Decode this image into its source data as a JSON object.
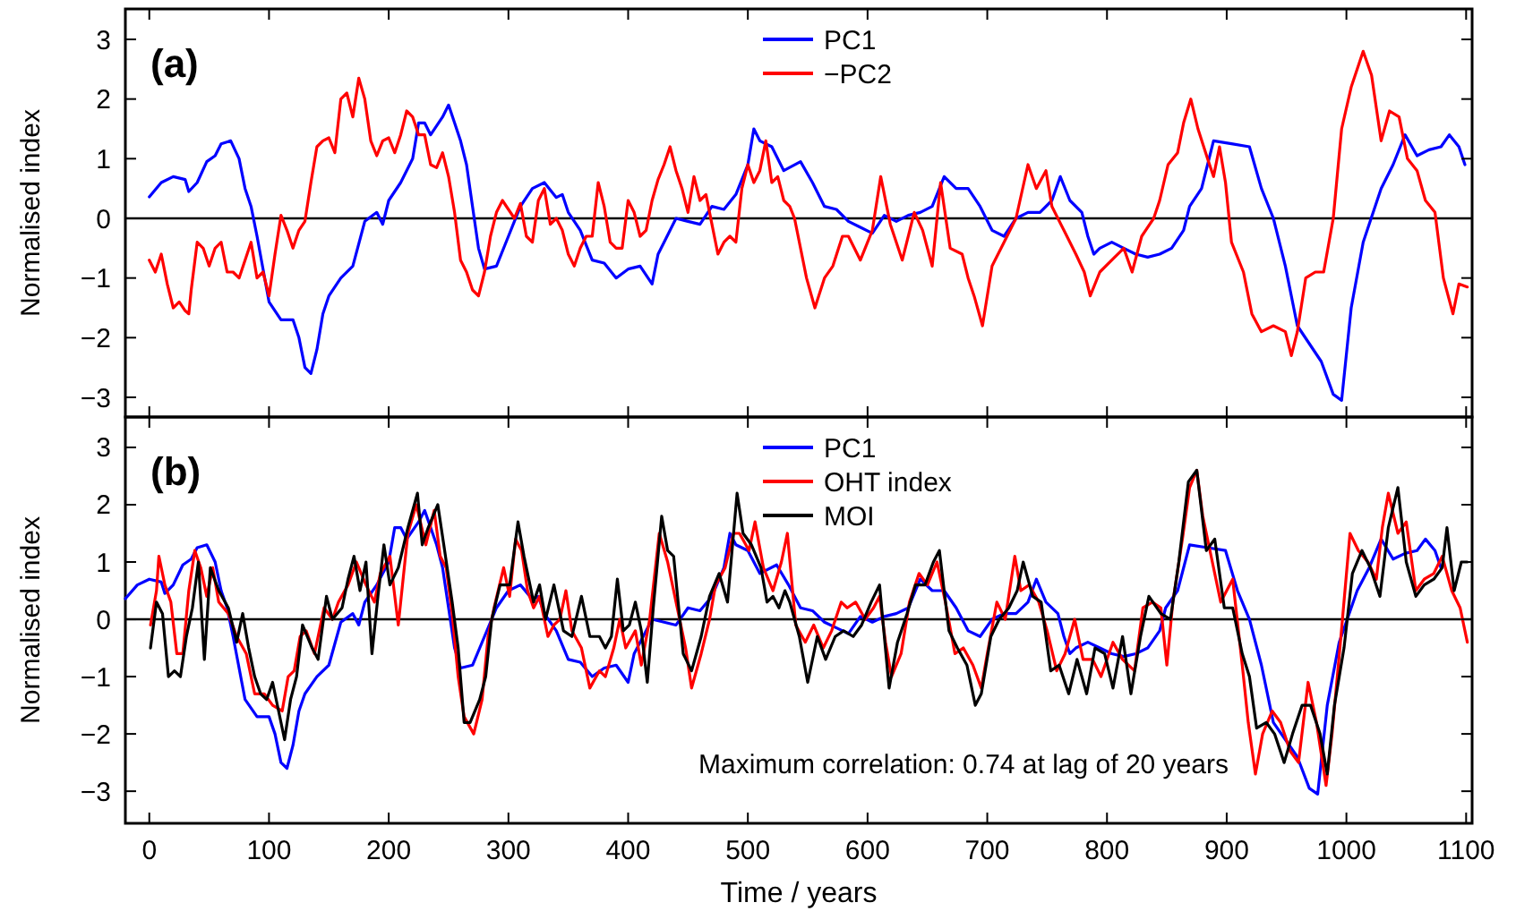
{
  "chart_data": [
    {
      "type": "line",
      "title": "(a)",
      "ylabel": "Normalised index",
      "xlim": [
        -20,
        1105
      ],
      "xticks": [
        0,
        100,
        200,
        300,
        400,
        500,
        600,
        700,
        800,
        900,
        1000,
        1100
      ],
      "ylim": [
        -3.33,
        3.51
      ],
      "yticks": [
        -3,
        -2,
        -1,
        0,
        1,
        2,
        3
      ],
      "tick_labels": "y",
      "legend": "top",
      "ref_lines": [
        {
          "axis": "y",
          "value": 0,
          "color": "#000000"
        }
      ],
      "series": [
        {
          "name": "PC1",
          "color": "#0000ff",
          "x": [
            0,
            10,
            20,
            30,
            33,
            40,
            48,
            55,
            60,
            68,
            75,
            80,
            85,
            90,
            100,
            110,
            120,
            125,
            130,
            135,
            140,
            145,
            150,
            160,
            170,
            180,
            190,
            195,
            200,
            210,
            220,
            225,
            230,
            235,
            245,
            250,
            255,
            260,
            265,
            270,
            275,
            280,
            290,
            300,
            310,
            320,
            330,
            340,
            345,
            350,
            360,
            370,
            380,
            390,
            400,
            410,
            420,
            425,
            430,
            440,
            450,
            460,
            470,
            480,
            490,
            500,
            505,
            510,
            520,
            530,
            544,
            554,
            564,
            574,
            584,
            594,
            604,
            614,
            624,
            634,
            644,
            654,
            664,
            674,
            684,
            694,
            704,
            714,
            724,
            734,
            744,
            754,
            761,
            769,
            779,
            784,
            789,
            794,
            804,
            814,
            824,
            834,
            844,
            854,
            864,
            869,
            879,
            889,
            904,
            919,
            929,
            939,
            949,
            959,
            969,
            979,
            989,
            996,
            1004,
            1014,
            1029,
            1039,
            1049,
            1059,
            1069,
            1079,
            1086,
            1094,
            1099
          ],
          "values": [
            0.36,
            0.6,
            0.7,
            0.65,
            0.45,
            0.6,
            0.95,
            1.05,
            1.25,
            1.3,
            1.0,
            0.5,
            0.2,
            -0.3,
            -1.4,
            -1.7,
            -1.7,
            -2.0,
            -2.5,
            -2.6,
            -2.2,
            -1.6,
            -1.3,
            -1.0,
            -0.8,
            -0.05,
            0.1,
            -0.1,
            0.3,
            0.6,
            1.0,
            1.6,
            1.6,
            1.4,
            1.7,
            1.9,
            1.6,
            1.3,
            0.9,
            0.2,
            -0.5,
            -0.85,
            -0.8,
            -0.3,
            0.2,
            0.5,
            0.6,
            0.35,
            0.4,
            0.1,
            -0.2,
            -0.7,
            -0.75,
            -1.0,
            -0.85,
            -0.8,
            -1.1,
            -0.6,
            -0.4,
            0,
            -0.05,
            -0.1,
            0.2,
            0.15,
            0.4,
            0.9,
            1.5,
            1.3,
            1.2,
            0.8,
            0.95,
            0.6,
            0.2,
            0.15,
            -0.05,
            -0.15,
            -0.25,
            0.05,
            -0.05,
            0.05,
            0.1,
            0.2,
            0.7,
            0.5,
            0.5,
            0.2,
            -0.2,
            -0.3,
            0,
            0.1,
            0.1,
            0.3,
            0.7,
            0.3,
            0.1,
            -0.3,
            -0.6,
            -0.5,
            -0.4,
            -0.5,
            -0.6,
            -0.65,
            -0.6,
            -0.5,
            -0.2,
            0.2,
            0.5,
            1.3,
            1.25,
            1.2,
            0.5,
            0,
            -0.8,
            -1.8,
            -2.1,
            -2.4,
            -2.95,
            -3.05,
            -1.5,
            -0.4,
            0.5,
            0.9,
            1.4,
            1.05,
            1.15,
            1.2,
            1.4,
            1.2,
            0.9
          ]
        },
        {
          "name": "−PC2",
          "color": "#ff0000",
          "x": [
            0,
            5,
            10,
            15,
            20,
            25,
            30,
            33,
            35,
            40,
            45,
            50,
            55,
            60,
            65,
            70,
            75,
            80,
            85,
            90,
            95,
            100,
            105,
            110,
            115,
            120,
            125,
            130,
            135,
            140,
            145,
            150,
            155,
            160,
            165,
            170,
            175,
            180,
            185,
            190,
            195,
            200,
            205,
            210,
            215,
            220,
            225,
            230,
            235,
            240,
            245,
            250,
            255,
            260,
            265,
            270,
            275,
            280,
            285,
            290,
            295,
            300,
            305,
            310,
            315,
            320,
            325,
            330,
            335,
            340,
            345,
            350,
            355,
            360,
            365,
            370,
            375,
            380,
            385,
            390,
            395,
            400,
            405,
            410,
            415,
            420,
            425,
            430,
            435,
            440,
            445,
            450,
            455,
            460,
            465,
            470,
            475,
            480,
            485,
            490,
            495,
            500,
            505,
            510,
            515,
            520,
            525,
            530,
            535,
            539,
            549,
            556,
            564,
            571,
            579,
            584,
            594,
            604,
            611,
            619,
            629,
            639,
            646,
            654,
            661,
            669,
            679,
            684,
            689,
            696,
            704,
            714,
            724,
            734,
            741,
            749,
            754,
            764,
            774,
            781,
            786,
            794,
            804,
            814,
            821,
            829,
            839,
            844,
            851,
            859,
            864,
            870,
            876,
            884,
            889,
            894,
            899,
            904,
            914,
            921,
            929,
            939,
            949,
            954,
            959,
            966,
            974,
            981,
            989,
            996,
            1004,
            1014,
            1021,
            1029,
            1036,
            1044,
            1051,
            1059,
            1066,
            1074,
            1081,
            1089,
            1094,
            1101
          ],
          "values": [
            -0.7,
            -0.9,
            -0.6,
            -1.1,
            -1.5,
            -1.4,
            -1.55,
            -1.6,
            -1.2,
            -0.4,
            -0.5,
            -0.8,
            -0.5,
            -0.4,
            -0.9,
            -0.9,
            -1.0,
            -0.7,
            -0.4,
            -1.0,
            -0.9,
            -1.3,
            -0.6,
            0.05,
            -0.2,
            -0.5,
            -0.2,
            -0.05,
            0.6,
            1.2,
            1.3,
            1.35,
            1.1,
            2.0,
            2.1,
            1.7,
            2.35,
            2.0,
            1.3,
            1.05,
            1.3,
            1.35,
            1.1,
            1.4,
            1.8,
            1.7,
            1.4,
            1.4,
            0.9,
            0.85,
            1.1,
            0.7,
            0.1,
            -0.7,
            -0.9,
            -1.2,
            -1.3,
            -0.9,
            -0.3,
            0.1,
            0.3,
            0.15,
            0,
            0.25,
            -0.3,
            -0.4,
            0.3,
            0.5,
            -0.1,
            0,
            -0.2,
            -0.6,
            -0.8,
            -0.5,
            -0.3,
            -0.3,
            0.6,
            0.2,
            -0.4,
            -0.5,
            -0.5,
            0.3,
            0.1,
            -0.3,
            -0.2,
            0.3,
            0.65,
            0.9,
            1.2,
            0.8,
            0.5,
            0.1,
            0.7,
            0.3,
            0.4,
            -0.1,
            -0.6,
            -0.4,
            -0.3,
            -0.4,
            0.5,
            0.9,
            0.6,
            0.8,
            1.3,
            0.6,
            0.7,
            0.3,
            0.2,
            0,
            -1.0,
            -1.5,
            -1.0,
            -0.8,
            -0.3,
            -0.3,
            -0.7,
            -0.2,
            0.7,
            -0.1,
            -0.7,
            0.1,
            -0.2,
            -0.8,
            0.6,
            -0.5,
            -0.6,
            -1.0,
            -1.3,
            -1.8,
            -0.8,
            -0.4,
            0,
            0.9,
            0.5,
            0.8,
            0.2,
            -0.2,
            -0.6,
            -0.9,
            -1.3,
            -0.9,
            -0.7,
            -0.5,
            -0.9,
            -0.3,
            0,
            0.3,
            0.9,
            1.1,
            1.6,
            2.0,
            1.5,
            1.0,
            0.7,
            1.2,
            0.6,
            -0.4,
            -0.9,
            -1.6,
            -1.9,
            -1.8,
            -1.9,
            -2.3,
            -1.9,
            -1.0,
            -0.9,
            -0.9,
            0,
            1.5,
            2.2,
            2.8,
            2.4,
            1.3,
            1.8,
            1.7,
            1.0,
            0.8,
            0.3,
            0.1,
            -1.0,
            -1.6,
            -1.1,
            -1.15
          ]
        }
      ]
    },
    {
      "type": "line",
      "title": "(b)",
      "xlabel": "Time  / years",
      "ylabel": "Normalised index",
      "xlim": [
        -20,
        1105
      ],
      "xticks": [
        0,
        100,
        200,
        300,
        400,
        500,
        600,
        700,
        800,
        900,
        1000,
        1100
      ],
      "ylim": [
        -3.56,
        3.53
      ],
      "yticks": [
        -3,
        -2,
        -1,
        0,
        1,
        2,
        3
      ],
      "legend": "top",
      "ref_lines": [
        {
          "axis": "y",
          "value": 0,
          "color": "#000000"
        }
      ],
      "annotations": [
        "Maximum correlation: 0.74 at lag of 20 years"
      ],
      "series": [
        {
          "name": "PC1",
          "color": "#0000ff",
          "x": [
            -20,
            -10,
            0,
            10,
            13,
            20,
            28,
            35,
            40,
            48,
            55,
            60,
            65,
            70,
            80,
            90,
            100,
            105,
            110,
            115,
            120,
            125,
            130,
            140,
            150,
            160,
            170,
            175,
            180,
            190,
            200,
            205,
            210,
            215,
            225,
            230,
            235,
            240,
            245,
            250,
            255,
            260,
            270,
            280,
            290,
            300,
            310,
            320,
            325,
            330,
            340,
            350,
            360,
            370,
            380,
            390,
            400,
            405,
            410,
            420,
            430,
            440,
            450,
            460,
            470,
            480,
            485,
            490,
            500,
            510,
            524,
            534,
            544,
            554,
            564,
            574,
            584,
            594,
            604,
            614,
            624,
            634,
            644,
            654,
            664,
            674,
            684,
            694,
            704,
            714,
            724,
            734,
            741,
            749,
            759,
            764,
            769,
            774,
            784,
            794,
            804,
            814,
            824,
            834,
            844,
            849,
            859,
            869,
            884,
            899,
            909,
            919,
            929,
            939,
            949,
            959,
            969,
            976,
            984,
            994,
            1009,
            1019,
            1029,
            1039,
            1049,
            1059,
            1066,
            1074,
            1079
          ],
          "values": [
            0.36,
            0.6,
            0.7,
            0.65,
            0.45,
            0.6,
            0.95,
            1.05,
            1.25,
            1.3,
            1.0,
            0.5,
            0.2,
            -0.3,
            -1.4,
            -1.7,
            -1.7,
            -2.0,
            -2.5,
            -2.6,
            -2.2,
            -1.6,
            -1.3,
            -1.0,
            -0.8,
            -0.05,
            0.1,
            -0.1,
            0.3,
            0.6,
            1.0,
            1.6,
            1.6,
            1.4,
            1.7,
            1.9,
            1.6,
            1.3,
            0.9,
            0.2,
            -0.5,
            -0.85,
            -0.8,
            -0.3,
            0.2,
            0.5,
            0.6,
            0.35,
            0.4,
            0.1,
            -0.2,
            -0.7,
            -0.75,
            -1.0,
            -0.85,
            -0.8,
            -1.1,
            -0.6,
            -0.4,
            0,
            -0.05,
            -0.1,
            0.2,
            0.15,
            0.4,
            0.9,
            1.5,
            1.3,
            1.2,
            0.8,
            0.95,
            0.6,
            0.2,
            0.15,
            -0.05,
            -0.15,
            -0.25,
            0.05,
            -0.05,
            0.05,
            0.1,
            0.2,
            0.7,
            0.5,
            0.5,
            0.2,
            -0.2,
            -0.3,
            0,
            0.1,
            0.1,
            0.3,
            0.7,
            0.3,
            0.1,
            -0.3,
            -0.6,
            -0.5,
            -0.4,
            -0.5,
            -0.6,
            -0.65,
            -0.6,
            -0.5,
            -0.2,
            0.2,
            0.5,
            1.3,
            1.25,
            1.2,
            0.5,
            0,
            -0.8,
            -1.8,
            -2.1,
            -2.4,
            -2.95,
            -3.05,
            -1.5,
            -0.4,
            0.5,
            0.9,
            1.4,
            1.05,
            1.15,
            1.2,
            1.4,
            1.2,
            0.9
          ]
        },
        {
          "name": "OHT index",
          "color": "#ff0000",
          "x": [
            1,
            6,
            8,
            13,
            18,
            23,
            28,
            33,
            38,
            43,
            48,
            53,
            58,
            66,
            73,
            81,
            88,
            96,
            103,
            111,
            116,
            121,
            126,
            131,
            138,
            146,
            153,
            158,
            166,
            173,
            181,
            188,
            193,
            201,
            208,
            216,
            223,
            231,
            238,
            243,
            248,
            253,
            258,
            263,
            271,
            278,
            283,
            288,
            296,
            301,
            306,
            311,
            316,
            321,
            326,
            333,
            338,
            343,
            348,
            353,
            361,
            368,
            376,
            381,
            388,
            393,
            398,
            406,
            411,
            418,
            426,
            433,
            441,
            448,
            453,
            461,
            468,
            473,
            481,
            488,
            493,
            501,
            506,
            513,
            521,
            528,
            533,
            540,
            548,
            555,
            563,
            570,
            578,
            583,
            590,
            598,
            605,
            610,
            615,
            620,
            628,
            635,
            643,
            650,
            658,
            665,
            673,
            680,
            688,
            695,
            700,
            708,
            715,
            723,
            728,
            735,
            743,
            750,
            758,
            765,
            773,
            780,
            788,
            795,
            805,
            813,
            823,
            830,
            838,
            845,
            850,
            855,
            863,
            869,
            875,
            880,
            888,
            895,
            905,
            913,
            918,
            924,
            930,
            938,
            945,
            953,
            960,
            968,
            975,
            983,
            988,
            995,
            1003,
            1010,
            1018,
            1025,
            1030,
            1035,
            1043,
            1050,
            1058,
            1065,
            1073,
            1080,
            1088,
            1095,
            1101
          ],
          "values": [
            -0.1,
            0.5,
            1.1,
            0.6,
            0.3,
            -0.6,
            -0.6,
            0.5,
            1.2,
            0.9,
            0.4,
            0.9,
            0.3,
            0.1,
            -0.3,
            -0.6,
            -1.3,
            -1.3,
            -1.5,
            -1.6,
            -1.0,
            -0.9,
            -0.3,
            -0.2,
            -0.6,
            0.2,
            0,
            0.3,
            0.6,
            1.0,
            0.6,
            0.3,
            0.8,
            1.1,
            -0.1,
            1.5,
            2.0,
            1.3,
            1.9,
            1.1,
            0.9,
            0.1,
            -1.0,
            -1.7,
            -2.0,
            -1.4,
            -0.3,
            0.2,
            0.9,
            0.4,
            1.4,
            1.2,
            0.5,
            0.2,
            0.4,
            -0.3,
            -0.1,
            0,
            0.5,
            -0.2,
            -0.5,
            -1.2,
            -0.9,
            -1.0,
            -0.5,
            0,
            -0.5,
            -0.2,
            -0.8,
            0,
            1.5,
            1.0,
            0.2,
            -0.5,
            -1.2,
            -0.6,
            0,
            0.6,
            0.9,
            1.5,
            1.5,
            1.2,
            1.7,
            0.9,
            0.5,
            1.0,
            1.5,
            -0.1,
            -0.4,
            -0.1,
            -0.5,
            -0.2,
            0.3,
            0.2,
            0.3,
            0,
            0.2,
            0.4,
            -0.4,
            -1.0,
            -0.6,
            0.3,
            0.8,
            0.6,
            1.0,
            0.3,
            -0.6,
            -0.5,
            -0.8,
            -1.2,
            -0.6,
            0.3,
            0,
            1.1,
            0.5,
            0.6,
            0.3,
            -0.2,
            -0.9,
            -0.6,
            0,
            -0.7,
            -0.7,
            -1.0,
            -0.4,
            -0.7,
            -0.9,
            0.2,
            0.3,
            0.2,
            -0.8,
            0.3,
            1.4,
            2.3,
            2.6,
            1.8,
            1.0,
            0.3,
            0.7,
            -0.8,
            -1.8,
            -2.7,
            -2.0,
            -1.6,
            -1.8,
            -2.3,
            -2.5,
            -1.1,
            -1.8,
            -2.9,
            -2.0,
            -0.4,
            1.5,
            1.2,
            1.0,
            0.7,
            1.6,
            2.2,
            1.5,
            1.7,
            0.5,
            0.7,
            0.8,
            1.1,
            0.5,
            0.2,
            -0.4
          ]
        },
        {
          "name": "MOI",
          "color": "#000000",
          "x": [
            1,
            6,
            11,
            16,
            21,
            26,
            31,
            36,
            41,
            46,
            51,
            58,
            66,
            73,
            78,
            83,
            88,
            93,
            98,
            103,
            108,
            113,
            118,
            123,
            128,
            136,
            141,
            148,
            153,
            161,
            166,
            171,
            176,
            181,
            186,
            191,
            196,
            201,
            208,
            216,
            224,
            228,
            233,
            241,
            246,
            253,
            258,
            263,
            268,
            276,
            281,
            286,
            293,
            301,
            308,
            313,
            321,
            326,
            331,
            338,
            346,
            353,
            361,
            368,
            376,
            381,
            386,
            391,
            396,
            401,
            406,
            411,
            416,
            421,
            428,
            433,
            438,
            446,
            453,
            461,
            468,
            476,
            483,
            491,
            496,
            503,
            511,
            516,
            521,
            526,
            531,
            535,
            543,
            550,
            558,
            565,
            573,
            580,
            588,
            595,
            603,
            610,
            618,
            625,
            633,
            640,
            648,
            655,
            660,
            668,
            675,
            683,
            690,
            695,
            703,
            710,
            718,
            725,
            730,
            738,
            745,
            753,
            760,
            768,
            775,
            783,
            790,
            798,
            805,
            813,
            820,
            828,
            835,
            845,
            853,
            860,
            868,
            875,
            883,
            890,
            898,
            905,
            913,
            919,
            925,
            933,
            940,
            948,
            955,
            963,
            970,
            978,
            984,
            990,
            998,
            1005,
            1013,
            1020,
            1028,
            1035,
            1043,
            1050,
            1058,
            1065,
            1073,
            1080,
            1084,
            1090,
            1096,
            1101
          ],
          "values": [
            -0.5,
            0.3,
            0.1,
            -1.0,
            -0.9,
            -1.0,
            -0.3,
            0.2,
            1.0,
            -0.7,
            0.9,
            0.5,
            0.2,
            -0.4,
            0.1,
            -0.5,
            -1.0,
            -1.3,
            -1.4,
            -1.1,
            -1.6,
            -2.1,
            -1.4,
            -1.0,
            -0.1,
            -0.5,
            -0.7,
            0.4,
            0,
            0.2,
            0.7,
            1.1,
            0.5,
            1.0,
            -0.6,
            0.4,
            1.3,
            0.6,
            0.9,
            1.6,
            2.2,
            1.3,
            1.6,
            2.0,
            1.3,
            0.3,
            -0.5,
            -1.8,
            -1.8,
            -1.4,
            -1.0,
            0,
            0.6,
            0.6,
            1.7,
            1.1,
            0.3,
            0.6,
            0,
            0.6,
            -0.2,
            -0.3,
            0.4,
            -0.3,
            -0.3,
            -0.5,
            -0.3,
            0.7,
            -0.2,
            -0.1,
            0.3,
            -0.2,
            -1.1,
            0.2,
            1.8,
            1.2,
            1.1,
            -0.6,
            -0.9,
            -0.3,
            0.4,
            0.8,
            0.3,
            2.2,
            1.5,
            1.3,
            0.9,
            0.3,
            0.4,
            0.2,
            0.5,
            0.3,
            -0.3,
            -1.1,
            -0.3,
            -0.7,
            -0.3,
            -0.2,
            -0.3,
            -0.1,
            0.3,
            0.6,
            -1.2,
            -0.4,
            0.1,
            0.6,
            0.6,
            1.0,
            1.2,
            -0.2,
            -0.5,
            -0.8,
            -1.5,
            -1.3,
            -0.3,
            0,
            0.2,
            0.5,
            1.0,
            0.4,
            0.3,
            -0.9,
            -0.8,
            -1.3,
            -0.7,
            -1.3,
            -0.5,
            -0.6,
            -1.2,
            -0.3,
            -1.3,
            -0.3,
            0.4,
            0.1,
            0,
            1.0,
            2.4,
            2.6,
            1.2,
            1.4,
            0.2,
            0.2,
            -0.6,
            -1.0,
            -1.9,
            -1.8,
            -2.0,
            -2.5,
            -2.0,
            -1.5,
            -1.5,
            -2.0,
            -2.7,
            -1.5,
            -0.5,
            0.8,
            1.2,
            0.9,
            0.4,
            1.6,
            2.3,
            1.0,
            0.4,
            0.6,
            0.7,
            0.9,
            1.6,
            0.5,
            1.0,
            1.0
          ]
        }
      ]
    }
  ]
}
